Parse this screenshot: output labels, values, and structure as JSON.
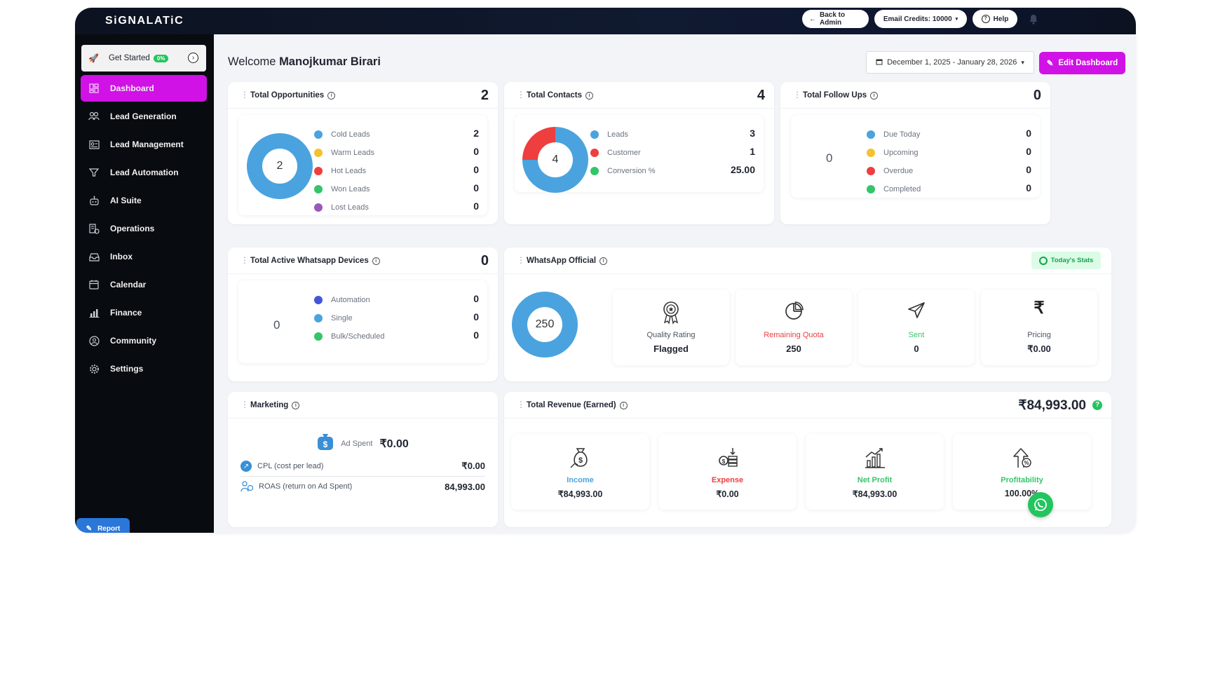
{
  "app": {
    "logo": "SiGNALATiC"
  },
  "topbar": {
    "back_to_admin": "Back to Admin",
    "email_credits": "Email Credits: 10000",
    "help": "Help"
  },
  "sidebar": {
    "get_started": {
      "label": "Get Started",
      "progress": "0%"
    },
    "items": [
      {
        "label": "Dashboard",
        "icon": "dashboard-icon",
        "active": true
      },
      {
        "label": "Lead Generation",
        "icon": "users-icon"
      },
      {
        "label": "Lead Management",
        "icon": "id-card-icon"
      },
      {
        "label": "Lead Automation",
        "icon": "funnel-icon"
      },
      {
        "label": "AI Suite",
        "icon": "robot-icon"
      },
      {
        "label": "Operations",
        "icon": "operations-icon"
      },
      {
        "label": "Inbox",
        "icon": "inbox-icon"
      },
      {
        "label": "Calendar",
        "icon": "calendar-icon"
      },
      {
        "label": "Finance",
        "icon": "finance-chart-icon"
      },
      {
        "label": "Community",
        "icon": "community-icon"
      },
      {
        "label": "Settings",
        "icon": "gear-icon"
      }
    ],
    "report": "Report"
  },
  "header": {
    "welcome": "Welcome",
    "user_name": "Manojkumar Birari",
    "date_range": "December 1, 2025 - January 28, 2026",
    "edit_dashboard": "Edit Dashboard"
  },
  "opportunities": {
    "title": "Total Opportunities",
    "total": "2",
    "center": "2",
    "legend": [
      {
        "label": "Cold Leads",
        "value": "2",
        "color": "#4aa3de"
      },
      {
        "label": "Warm Leads",
        "value": "0",
        "color": "#f5c12e"
      },
      {
        "label": "Hot Leads",
        "value": "0",
        "color": "#ee3e3e"
      },
      {
        "label": "Won Leads",
        "value": "0",
        "color": "#34c56a"
      },
      {
        "label": "Lost Leads",
        "value": "0",
        "color": "#9b59b6"
      }
    ]
  },
  "contacts": {
    "title": "Total Contacts",
    "total": "4",
    "center": "4",
    "legend": [
      {
        "label": "Leads",
        "value": "3",
        "color": "#4aa3de"
      },
      {
        "label": "Customer",
        "value": "1",
        "color": "#ee3e3e"
      },
      {
        "label": "Conversion %",
        "value": "25.00",
        "color": "#34c56a"
      }
    ]
  },
  "followups": {
    "title": "Total Follow Ups",
    "total": "0",
    "center": "0",
    "legend": [
      {
        "label": "Due Today",
        "value": "0",
        "color": "#4aa3de"
      },
      {
        "label": "Upcoming",
        "value": "0",
        "color": "#f5c12e"
      },
      {
        "label": "Overdue",
        "value": "0",
        "color": "#ee3e3e"
      },
      {
        "label": "Completed",
        "value": "0",
        "color": "#34c56a"
      }
    ]
  },
  "devices": {
    "title": "Total Active Whatsapp Devices",
    "total": "0",
    "center": "0",
    "legend": [
      {
        "label": "Automation",
        "value": "0",
        "color": "#4456d8"
      },
      {
        "label": "Single",
        "value": "0",
        "color": "#4aa3de"
      },
      {
        "label": "Bulk/Scheduled",
        "value": "0",
        "color": "#34c56a"
      }
    ]
  },
  "whatsapp": {
    "title": "WhatsApp Official",
    "todays_stats": "Today's Stats",
    "center": "250",
    "stats": [
      {
        "label": "Quality Rating",
        "value": "Flagged",
        "icon": "award-badge-icon",
        "color": "#4b5563"
      },
      {
        "label": "Remaining Quota",
        "value": "250",
        "icon": "pie-chart-icon",
        "color": "#ee3e3e"
      },
      {
        "label": "Sent",
        "value": "0",
        "icon": "send-icon",
        "color": "#34c56a"
      },
      {
        "label": "Pricing",
        "value": "₹0.00",
        "icon": "rupee-icon",
        "color": "#4b5563"
      }
    ]
  },
  "marketing": {
    "title": "Marketing",
    "ad_spent_label": "Ad Spent",
    "ad_spent_value": "₹0.00",
    "rows": [
      {
        "label": "CPL (cost per lead)",
        "value": "₹0.00",
        "icon": "trend-icon"
      },
      {
        "label": "ROAS (return on Ad Spent)",
        "value": "84,993.00",
        "icon": "people-money-icon"
      }
    ]
  },
  "revenue": {
    "title": "Total Revenue (Earned)",
    "total": "₹84,993.00",
    "stats": [
      {
        "label": "Income",
        "value": "₹84,993.00",
        "icon": "money-bag-icon",
        "color": "#4aa3de"
      },
      {
        "label": "Expense",
        "value": "₹0.00",
        "icon": "coins-icon",
        "color": "#ee3e3e"
      },
      {
        "label": "Net Profit",
        "value": "₹84,993.00",
        "icon": "bar-growth-icon",
        "color": "#34c56a"
      },
      {
        "label": "Profitability",
        "value": "100.00%",
        "icon": "percent-growth-icon",
        "color": "#34c56a"
      }
    ]
  }
}
